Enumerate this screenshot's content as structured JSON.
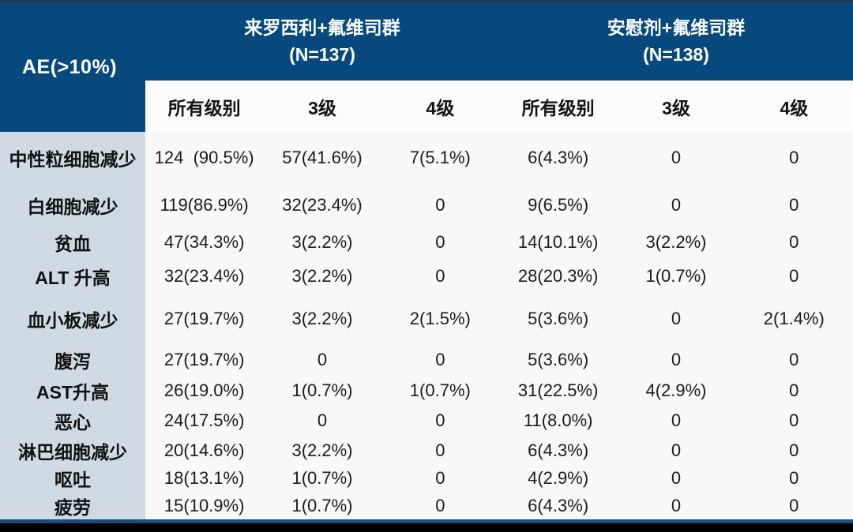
{
  "colors": {
    "header_blue": "#07497c",
    "header_top_edge": "#243750",
    "label_column_blue": "#cfdae3",
    "body_background": "#f8f8f8",
    "subheader_background": "#fbfbfb",
    "header_text": "#ffffff",
    "body_text": "#1b1b1b",
    "bottom_line_blue": "#1d4e7e",
    "bottom_band_black": "#010101"
  },
  "chart_data": {
    "type": "table",
    "title": "AE(>10%)",
    "column_groups": [
      {
        "label": "来罗西利+氟维司群",
        "sublabel": "(N=137)",
        "span": 3
      },
      {
        "label": "安慰剂+氟维司群",
        "sublabel": "(N=138)",
        "span": 3
      }
    ],
    "columns": [
      "所有级别",
      "3级",
      "4级",
      "所有级别",
      "3级",
      "4级"
    ],
    "rows": [
      {
        "label": "中性粒细胞减少",
        "values": [
          "124  (90.5%)",
          "57(41.6%)",
          "7(5.1%)",
          "6(4.3%)",
          "0",
          "0"
        ]
      },
      {
        "label": "白细胞减少",
        "values": [
          "119(86.9%)",
          "32(23.4%)",
          "0",
          "9(6.5%)",
          "0",
          "0"
        ]
      },
      {
        "label": "贫血",
        "values": [
          "47(34.3%)",
          "3(2.2%)",
          "0",
          "14(10.1%)",
          "3(2.2%)",
          "0"
        ]
      },
      {
        "label": "ALT 升高",
        "values": [
          "32(23.4%)",
          "3(2.2%)",
          "0",
          "28(20.3%)",
          "1(0.7%)",
          "0"
        ]
      },
      {
        "label": "血小板减少",
        "values": [
          "27(19.7%)",
          "3(2.2%)",
          "2(1.5%)",
          "5(3.6%)",
          "0",
          "2(1.4%)"
        ]
      },
      {
        "label": "腹泻",
        "values": [
          "27(19.7%)",
          "0",
          "0",
          "5(3.6%)",
          "0",
          "0"
        ]
      },
      {
        "label": "AST升高",
        "values": [
          "26(19.0%)",
          "1(0.7%)",
          "1(0.7%)",
          "31(22.5%)",
          "4(2.9%)",
          "0"
        ]
      },
      {
        "label": "恶心",
        "values": [
          "24(17.5%)",
          "0",
          "0",
          "11(8.0%)",
          "0",
          "0"
        ]
      },
      {
        "label": "淋巴细胞减少",
        "values": [
          "20(14.6%)",
          "3(2.2%)",
          "0",
          "6(4.3%)",
          "0",
          "0"
        ]
      },
      {
        "label": "呕吐",
        "values": [
          "18(13.1%)",
          "1(0.7%)",
          "0",
          "4(2.9%)",
          "0",
          "0"
        ]
      },
      {
        "label": "疲劳",
        "values": [
          "15(10.9%)",
          "1(0.7%)",
          "0",
          "6(4.3%)",
          "0",
          "0"
        ]
      }
    ]
  }
}
